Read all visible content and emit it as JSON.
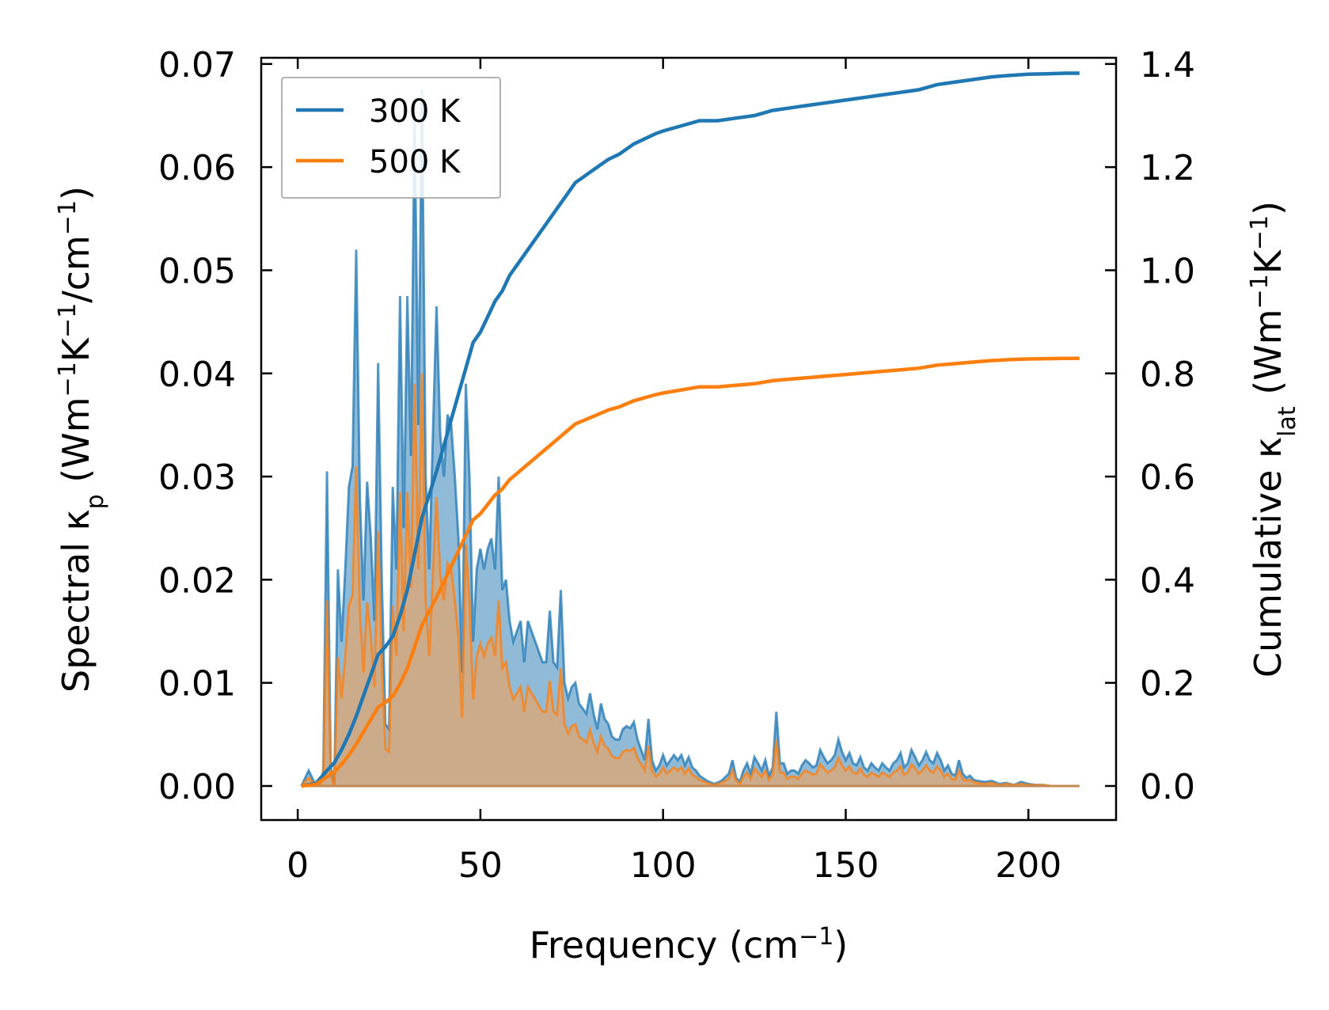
{
  "chart_data": {
    "type": "line",
    "title": "",
    "xlabel": "Frequency (cm",
    "xlabel_sup": "−1",
    "xlabel_end": ")",
    "ylabel_left": {
      "parts": [
        "Spectral κ",
        "p",
        " (Wm",
        "−1",
        "K",
        "−1",
        "/cm",
        "−1",
        ")"
      ],
      "kinds": [
        "n",
        "sub",
        "n",
        "sup",
        "n",
        "sup",
        "n",
        "sup",
        "n"
      ]
    },
    "ylabel_right": {
      "parts": [
        "Cumulative κ",
        "lat",
        " (Wm",
        "−1",
        "K",
        "−1",
        ")"
      ],
      "kinds": [
        "n",
        "sub",
        "n",
        "sup",
        "n",
        "sup",
        "n"
      ]
    },
    "xlim": [
      -10,
      224
    ],
    "ylim_left": [
      -0.0033,
      0.0706
    ],
    "ylim_right": [
      -0.066,
      1.412
    ],
    "xticks": [
      0,
      50,
      100,
      150,
      200
    ],
    "xtick_labels": [
      "0",
      "50",
      "100",
      "150",
      "200"
    ],
    "yticks_left": [
      0.0,
      0.01,
      0.02,
      0.03,
      0.04,
      0.05,
      0.06,
      0.07
    ],
    "ytick_labels_left": [
      "0.00",
      "0.01",
      "0.02",
      "0.03",
      "0.04",
      "0.05",
      "0.06",
      "0.07"
    ],
    "yticks_right": [
      0.0,
      0.2,
      0.4,
      0.6,
      0.8,
      1.0,
      1.2,
      1.4
    ],
    "ytick_labels_right": [
      "0.0",
      "0.2",
      "0.4",
      "0.6",
      "0.8",
      "1.0",
      "1.2",
      "1.4"
    ],
    "legend_position": "top-left",
    "colors": {
      "s300": "#1f77b4",
      "s500": "#ff7f0e",
      "fill300": "#1f77b4",
      "fill500": "#ff9f4a"
    },
    "spectral": {
      "x": [
        1,
        3,
        5,
        6,
        7,
        8,
        9,
        10,
        11,
        12,
        13,
        14,
        15,
        16,
        17,
        18,
        19,
        20,
        21,
        22,
        23,
        24,
        25,
        26,
        27,
        28,
        29,
        30,
        31,
        32,
        33,
        34,
        35,
        36,
        37,
        38,
        39,
        40,
        41,
        42,
        43,
        44,
        45,
        46,
        47,
        48,
        49,
        50,
        51,
        52,
        53,
        54,
        55,
        56,
        57,
        58,
        59,
        60,
        61,
        62,
        63,
        64,
        65,
        66,
        67,
        68,
        69,
        70,
        71,
        72,
        73,
        74,
        75,
        76,
        77,
        78,
        79,
        80,
        81,
        82,
        83,
        84,
        85,
        86,
        87,
        88,
        89,
        90,
        91,
        92,
        93,
        94,
        95,
        96,
        97,
        98,
        99,
        100,
        101,
        102,
        103,
        104,
        105,
        106,
        107,
        108,
        109,
        110,
        112,
        114,
        116,
        118,
        119,
        120,
        121,
        122,
        123,
        124,
        125,
        126,
        127,
        128,
        129,
        130,
        131,
        132,
        133,
        134,
        135,
        136,
        137,
        138,
        139,
        140,
        141,
        142,
        143,
        144,
        145,
        146,
        147,
        148,
        149,
        150,
        151,
        152,
        153,
        154,
        155,
        156,
        157,
        158,
        159,
        160,
        161,
        162,
        163,
        164,
        165,
        166,
        167,
        168,
        169,
        170,
        171,
        172,
        173,
        174,
        175,
        176,
        177,
        178,
        179,
        180,
        181,
        182,
        183,
        184,
        185,
        186,
        188,
        190,
        192,
        194,
        196,
        198,
        200,
        202,
        204,
        206,
        208,
        210,
        212,
        214
      ],
      "k300": [
        0.0,
        0.0015,
        0.0,
        0.0,
        0.0015,
        0.0305,
        0.002,
        0.0,
        0.021,
        0.014,
        0.021,
        0.029,
        0.031,
        0.052,
        0.028,
        0.018,
        0.0295,
        0.024,
        0.016,
        0.041,
        0.02,
        0.006,
        0.0055,
        0.029,
        0.021,
        0.0475,
        0.025,
        0.0475,
        0.032,
        0.065,
        0.035,
        0.0675,
        0.03,
        0.021,
        0.034,
        0.0465,
        0.034,
        0.03,
        0.036,
        0.035,
        0.03,
        0.024,
        0.011,
        0.039,
        0.03,
        0.014,
        0.021,
        0.023,
        0.021,
        0.023,
        0.024,
        0.021,
        0.03,
        0.019,
        0.02,
        0.016,
        0.014,
        0.015,
        0.016,
        0.012,
        0.016,
        0.015,
        0.014,
        0.013,
        0.012,
        0.012,
        0.017,
        0.012,
        0.0115,
        0.019,
        0.01,
        0.0085,
        0.0096,
        0.01,
        0.008,
        0.0075,
        0.007,
        0.009,
        0.007,
        0.0055,
        0.008,
        0.0065,
        0.006,
        0.0048,
        0.0045,
        0.0045,
        0.0055,
        0.0058,
        0.0056,
        0.0062,
        0.0045,
        0.0035,
        0.0025,
        0.0065,
        0.0025,
        0.0015,
        0.002,
        0.003,
        0.002,
        0.0025,
        0.003,
        0.0025,
        0.003,
        0.002,
        0.0028,
        0.0018,
        0.0015,
        0.001,
        0.0005,
        0.0002,
        0.0005,
        0.0012,
        0.0025,
        0.0008,
        0.0004,
        0.0015,
        0.0022,
        0.0012,
        0.0028,
        0.0022,
        0.0015,
        0.0025,
        0.001,
        0.0018,
        0.0072,
        0.0022,
        0.0022,
        0.0012,
        0.0015,
        0.0015,
        0.0012,
        0.002,
        0.0025,
        0.0022,
        0.0018,
        0.002,
        0.0035,
        0.0028,
        0.0022,
        0.0025,
        0.003,
        0.0045,
        0.0033,
        0.0025,
        0.0032,
        0.0022,
        0.002,
        0.0028,
        0.0018,
        0.0015,
        0.0022,
        0.0018,
        0.0015,
        0.0022,
        0.0018,
        0.0015,
        0.0022,
        0.0025,
        0.0032,
        0.0018,
        0.0022,
        0.0035,
        0.0028,
        0.002,
        0.0025,
        0.0033,
        0.0025,
        0.0022,
        0.0032,
        0.0025,
        0.0015,
        0.002,
        0.0012,
        0.001,
        0.0025,
        0.0012,
        0.0008,
        0.001,
        0.0006,
        0.0005,
        0.0004,
        0.0005,
        0.0002,
        0.0003,
        0.0001,
        0.0004,
        0.0002,
        0.0001,
        0.0001,
        0.0,
        0.0,
        0.0
      ],
      "k500": [
        0.0,
        0.0008,
        0.0,
        0.0,
        0.0009,
        0.018,
        0.0012,
        0.0,
        0.0125,
        0.0085,
        0.0125,
        0.0175,
        0.0185,
        0.031,
        0.017,
        0.011,
        0.0178,
        0.0145,
        0.0096,
        0.0247,
        0.012,
        0.0036,
        0.0033,
        0.0175,
        0.0126,
        0.0285,
        0.015,
        0.0285,
        0.0192,
        0.039,
        0.021,
        0.04,
        0.018,
        0.0126,
        0.0204,
        0.028,
        0.0204,
        0.018,
        0.0216,
        0.021,
        0.018,
        0.0144,
        0.0066,
        0.0234,
        0.018,
        0.0084,
        0.0126,
        0.0138,
        0.0126,
        0.0138,
        0.0144,
        0.0126,
        0.018,
        0.0114,
        0.012,
        0.0096,
        0.0084,
        0.009,
        0.0096,
        0.0072,
        0.0096,
        0.009,
        0.0084,
        0.0078,
        0.0072,
        0.0072,
        0.0102,
        0.0072,
        0.0069,
        0.0114,
        0.006,
        0.0051,
        0.0058,
        0.006,
        0.0048,
        0.0045,
        0.0042,
        0.0054,
        0.0042,
        0.0033,
        0.0048,
        0.0039,
        0.0036,
        0.0029,
        0.0027,
        0.0027,
        0.0033,
        0.0035,
        0.0034,
        0.0037,
        0.0027,
        0.0021,
        0.0015,
        0.0039,
        0.0015,
        0.0009,
        0.0012,
        0.0018,
        0.0012,
        0.0015,
        0.0018,
        0.0015,
        0.0018,
        0.0012,
        0.0017,
        0.0011,
        0.0009,
        0.0006,
        0.0003,
        0.0001,
        0.0003,
        0.0007,
        0.0015,
        0.0005,
        0.0002,
        0.0009,
        0.0013,
        0.0007,
        0.0017,
        0.0013,
        0.0009,
        0.0015,
        0.0006,
        0.0011,
        0.0045,
        0.0013,
        0.0013,
        0.0007,
        0.0009,
        0.0009,
        0.0007,
        0.0012,
        0.0015,
        0.0013,
        0.0011,
        0.0012,
        0.0021,
        0.0017,
        0.0013,
        0.0015,
        0.0018,
        0.0027,
        0.002,
        0.0015,
        0.0019,
        0.0013,
        0.0012,
        0.0017,
        0.0011,
        0.0009,
        0.0013,
        0.0011,
        0.0009,
        0.0013,
        0.0011,
        0.0009,
        0.0013,
        0.0015,
        0.0019,
        0.0011,
        0.0013,
        0.0021,
        0.0017,
        0.0012,
        0.0015,
        0.002,
        0.0015,
        0.0013,
        0.0019,
        0.0015,
        0.0009,
        0.0012,
        0.0007,
        0.0006,
        0.0015,
        0.0007,
        0.0005,
        0.0006,
        0.0004,
        0.0003,
        0.0002,
        0.0003,
        0.0001,
        0.0002,
        0.0001,
        0.0002,
        0.0001,
        0.0001,
        0.0001,
        0.0,
        0.0,
        0.0
      ]
    },
    "cumulative": {
      "x": [
        1,
        5,
        8,
        10,
        12,
        14,
        16,
        18,
        20,
        22,
        24,
        26,
        28,
        30,
        32,
        34,
        36,
        38,
        40,
        42,
        44,
        46,
        48,
        50,
        52,
        54,
        56,
        58,
        60,
        62,
        64,
        66,
        68,
        70,
        72,
        74,
        76,
        78,
        80,
        82,
        85,
        88,
        90,
        92,
        95,
        98,
        100,
        105,
        110,
        115,
        120,
        125,
        130,
        135,
        140,
        145,
        150,
        155,
        160,
        165,
        170,
        175,
        180,
        185,
        190,
        195,
        200,
        205,
        210,
        214
      ],
      "c300": [
        0.0,
        0.005,
        0.03,
        0.045,
        0.07,
        0.1,
        0.135,
        0.175,
        0.215,
        0.255,
        0.27,
        0.29,
        0.33,
        0.38,
        0.45,
        0.52,
        0.565,
        0.61,
        0.66,
        0.71,
        0.76,
        0.81,
        0.86,
        0.88,
        0.91,
        0.94,
        0.96,
        0.99,
        1.01,
        1.03,
        1.05,
        1.07,
        1.09,
        1.11,
        1.13,
        1.15,
        1.17,
        1.18,
        1.19,
        1.2,
        1.215,
        1.225,
        1.235,
        1.245,
        1.255,
        1.265,
        1.27,
        1.28,
        1.29,
        1.29,
        1.295,
        1.3,
        1.31,
        1.315,
        1.32,
        1.325,
        1.33,
        1.335,
        1.34,
        1.345,
        1.35,
        1.36,
        1.365,
        1.37,
        1.375,
        1.378,
        1.38,
        1.381,
        1.382,
        1.382
      ],
      "c500": [
        0.0,
        0.003,
        0.018,
        0.027,
        0.042,
        0.06,
        0.081,
        0.105,
        0.129,
        0.153,
        0.162,
        0.174,
        0.198,
        0.228,
        0.27,
        0.312,
        0.339,
        0.366,
        0.396,
        0.426,
        0.456,
        0.486,
        0.516,
        0.528,
        0.546,
        0.564,
        0.576,
        0.594,
        0.606,
        0.618,
        0.63,
        0.642,
        0.654,
        0.666,
        0.678,
        0.69,
        0.702,
        0.708,
        0.714,
        0.72,
        0.729,
        0.735,
        0.741,
        0.747,
        0.753,
        0.759,
        0.762,
        0.768,
        0.774,
        0.774,
        0.777,
        0.78,
        0.786,
        0.789,
        0.792,
        0.795,
        0.798,
        0.801,
        0.804,
        0.807,
        0.81,
        0.816,
        0.819,
        0.822,
        0.825,
        0.8268,
        0.828,
        0.8286,
        0.8292,
        0.8292
      ]
    },
    "series": [
      {
        "name": "300 K",
        "key": "300"
      },
      {
        "name": "500 K",
        "key": "500"
      }
    ]
  }
}
